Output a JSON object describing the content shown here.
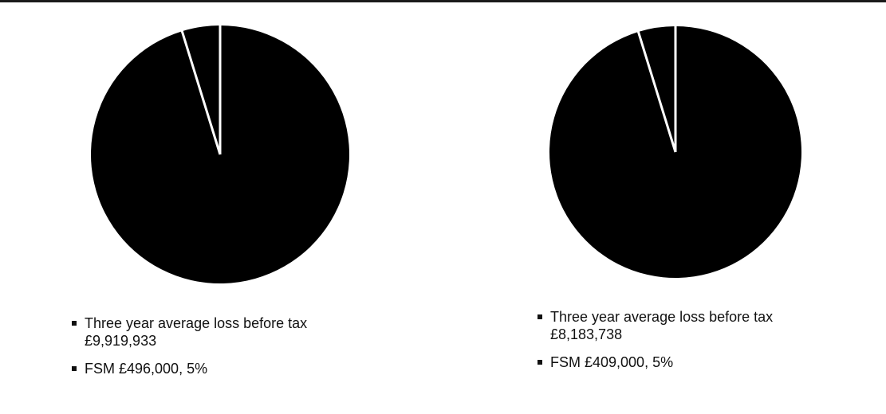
{
  "chart_data": [
    {
      "type": "pie",
      "slices": [
        {
          "label": "Three year average loss before tax",
          "value": 9919933,
          "value_text": "£9,919,933",
          "color": "#000000"
        },
        {
          "label": "FSM",
          "value": 496000,
          "value_text": "£496,000, 5%",
          "percent": 5,
          "color": "#000000"
        }
      ],
      "slice_separator_color": "#ffffff",
      "legend": {
        "placement": "bottom-left",
        "items": [
          {
            "line1": "Three year average loss before tax",
            "line2": "£9,919,933"
          },
          {
            "line1": "FSM £496,000, 5%",
            "line2": ""
          }
        ]
      }
    },
    {
      "type": "pie",
      "slices": [
        {
          "label": "Three year average loss before tax",
          "value": 8183738,
          "value_text": "£8,183,738",
          "color": "#000000"
        },
        {
          "label": "FSM",
          "value": 409000,
          "value_text": "£409,000, 5%",
          "percent": 5,
          "color": "#000000"
        }
      ],
      "slice_separator_color": "#ffffff",
      "legend": {
        "placement": "bottom-left",
        "items": [
          {
            "line1": "Three year average loss before tax",
            "line2": "£8,183,738"
          },
          {
            "line1": "FSM £409,000, 5%",
            "line2": ""
          }
        ]
      }
    }
  ]
}
